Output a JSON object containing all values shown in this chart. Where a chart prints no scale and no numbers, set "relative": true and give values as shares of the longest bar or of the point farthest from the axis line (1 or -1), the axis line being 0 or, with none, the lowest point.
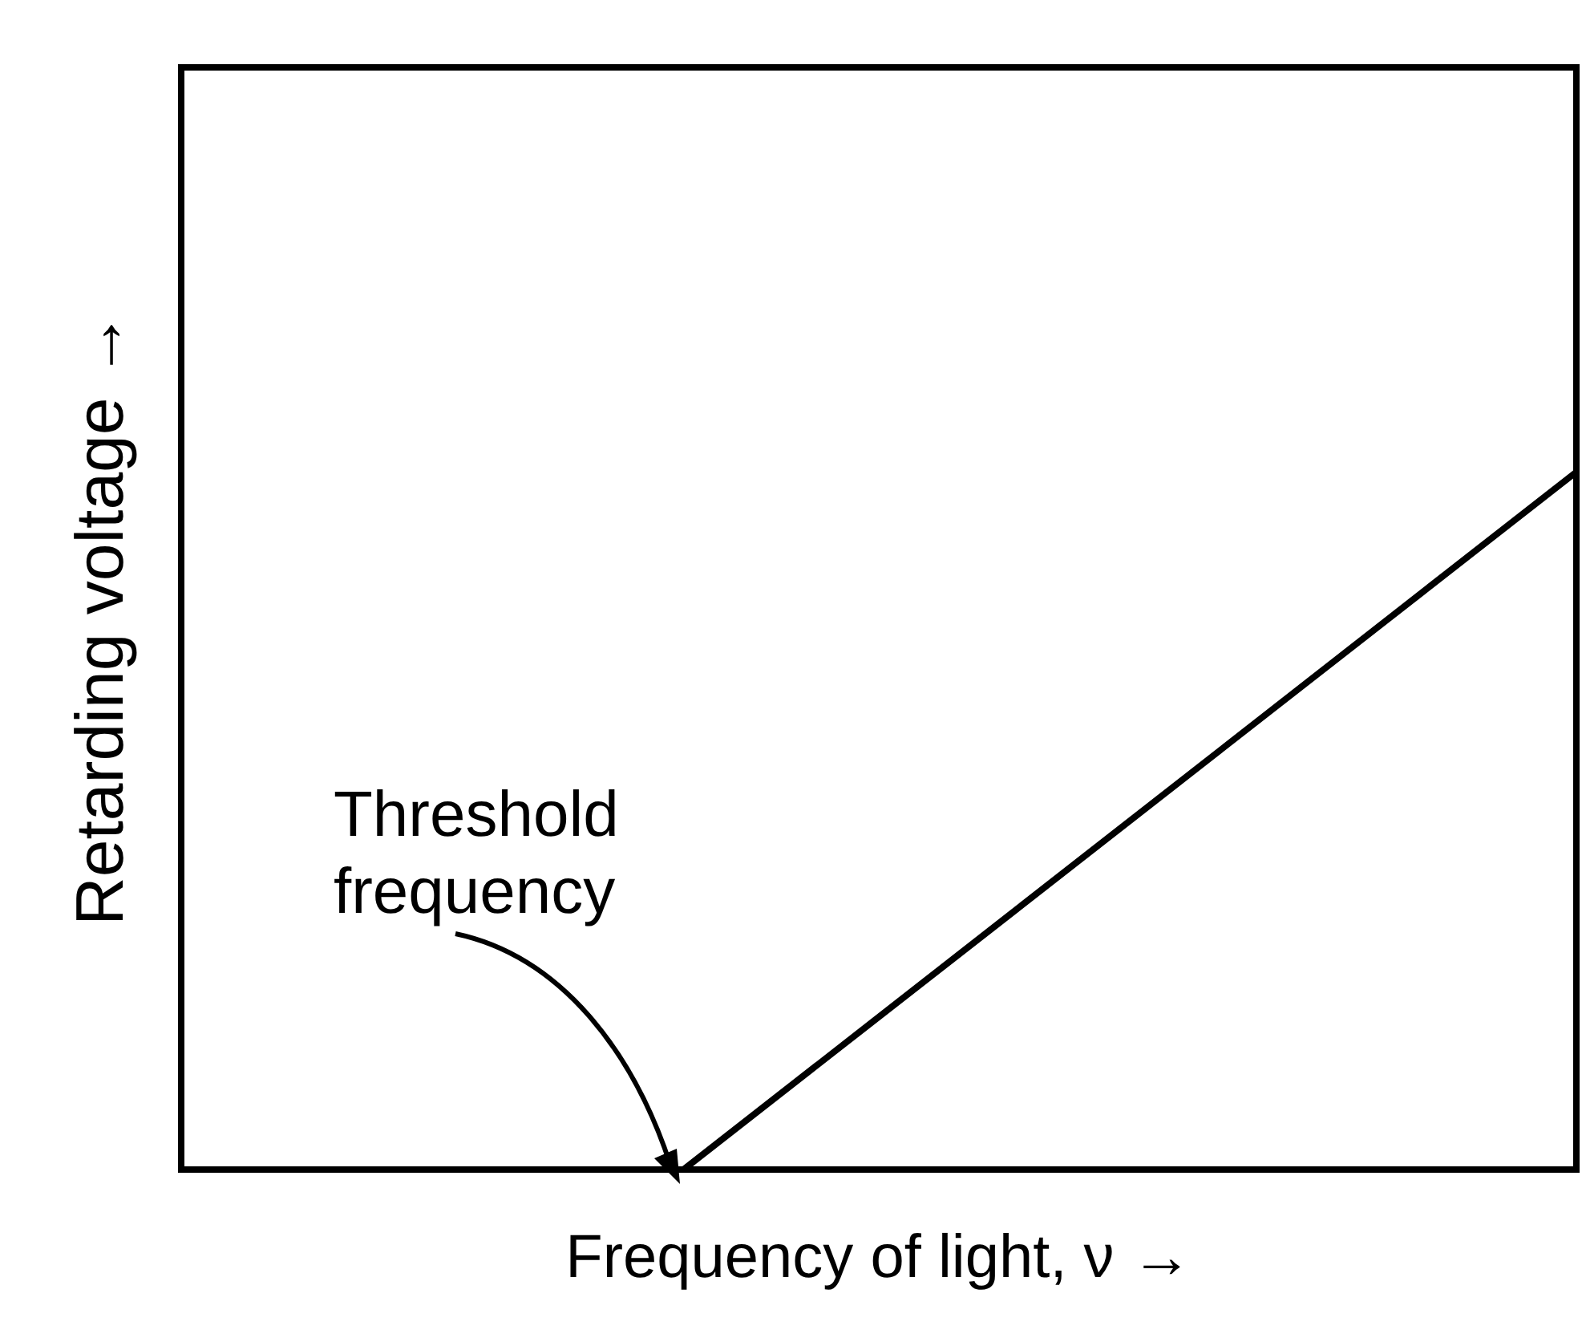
{
  "chart_data": {
    "type": "line",
    "relative": true,
    "xlabel": "Frequency of light, ν →",
    "ylabel": "Retarding voltage →",
    "categories": [
      null,
      null,
      null,
      null,
      null,
      null,
      null,
      null,
      null,
      null,
      null,
      null,
      null,
      null,
      null,
      null,
      null,
      null,
      null,
      null,
      null,
      null,
      null,
      null,
      null,
      null
    ],
    "series": [
      {
        "color": "#000000",
        "values": [
          null,
          null,
          null,
          null,
          null,
          null,
          null,
          null,
          null,
          0,
          null,
          null,
          null,
          null,
          null,
          null,
          null,
          null,
          null,
          null,
          null,
          null,
          null,
          null,
          null,
          1
        ]
      }
    ],
    "annotations": [
      "Threshold\nfrequency"
    ],
    "grid": false,
    "marker": "none",
    "line_style": "solid"
  }
}
